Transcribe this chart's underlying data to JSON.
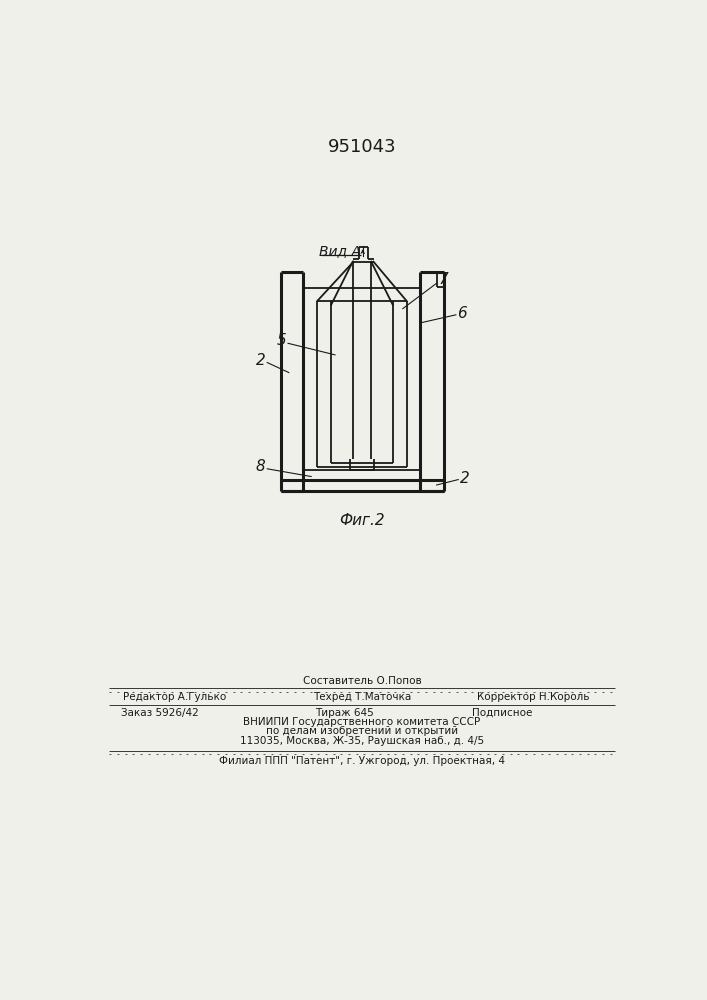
{
  "patent_number": "951043",
  "view_label": "Вид А",
  "fig_label": "Фиг.2",
  "bg_color": "#f0f0eb",
  "line_color": "#1a1a1a",
  "lw_thin": 1.0,
  "lw_thick": 2.0,
  "footer_fs": 7.5,
  "label_fs": 11,
  "footer": {
    "line1_center": "Составитель О.Попов",
    "line2_left": "Редактор А.Гулько",
    "line2_center": "Техред Т.Маточка",
    "line2_right": "Корректор Н.Король",
    "line3_left": "Заказ 5926/42",
    "line3_center": "Тираж 645",
    "line3_right": "Подписное",
    "line4": "ВНИИПИ Государственного комитета СССР",
    "line5": "по делам изобретений и открытий",
    "line6": "113035, Москва, Ж-35, Раушская наб., д. 4/5",
    "line7": "Филиал ППП \"Патент\", г. Ужгород, ул. Проектная, 4"
  }
}
